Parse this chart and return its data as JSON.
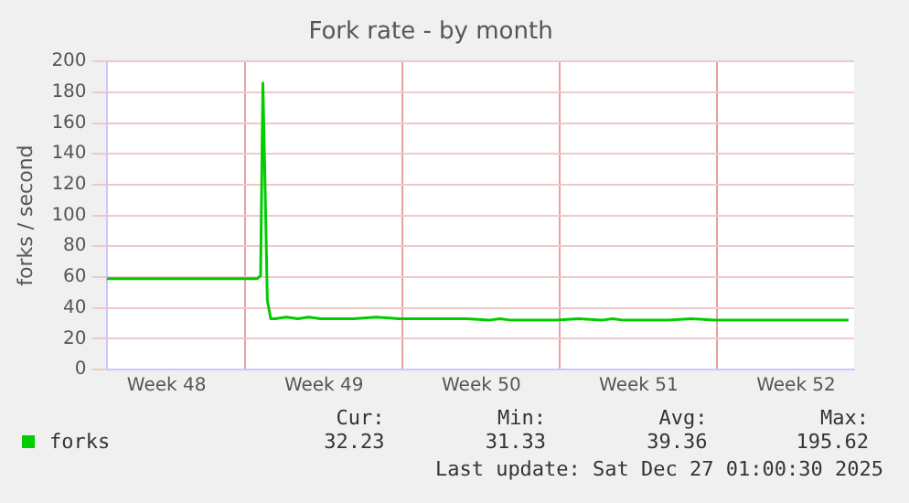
{
  "chart_data": {
    "type": "line",
    "title": "Fork rate - by month",
    "ylabel": "forks / second",
    "xlim": [
      "2025-11-24T20:00",
      "2025-12-28T02:00"
    ],
    "xticks": [
      {
        "value": "2025-11-27T12:00",
        "label": "Week 48"
      },
      {
        "value": "2025-12-01",
        "label": null
      },
      {
        "value": "2025-12-04T12:00",
        "label": "Week 49"
      },
      {
        "value": "2025-12-08",
        "label": null
      },
      {
        "value": "2025-12-11T12:00",
        "label": "Week 50"
      },
      {
        "value": "2025-12-15",
        "label": null
      },
      {
        "value": "2025-12-18T12:00",
        "label": "Week 51"
      },
      {
        "value": "2025-12-22",
        "label": null
      },
      {
        "value": "2025-12-25T12:00",
        "label": "Week 52"
      }
    ],
    "ylim": [
      0,
      200
    ],
    "yticks": [
      0,
      20,
      40,
      60,
      80,
      100,
      120,
      140,
      160,
      180,
      200
    ],
    "grid": true,
    "legend": "bottom",
    "marker": "none",
    "line_style": "solid",
    "series": [
      {
        "name": "forks",
        "color": "#00cc00",
        "x": [
          "2025-11-24T20:00",
          "2025-11-26T20:00",
          "2025-11-28T20:00",
          "2025-11-30T20:00",
          "2025-12-01T12:50",
          "2025-12-01T16:25",
          "2025-12-01T18:50",
          "2025-12-01T21:10",
          "2025-12-01T23:35",
          "2025-12-02T03:10",
          "2025-12-02T08:00",
          "2025-12-02T20:00",
          "2025-12-03T08:00",
          "2025-12-03T20:00",
          "2025-12-04T08:00",
          "2025-12-04T20:00",
          "2025-12-05T20:00",
          "2025-12-06T20:00",
          "2025-12-07T20:00",
          "2025-12-08T20:00",
          "2025-12-09T20:00",
          "2025-12-10T20:00",
          "2025-12-11T20:00",
          "2025-12-12T08:00",
          "2025-12-12T20:00",
          "2025-12-13T20:00",
          "2025-12-14T20:00",
          "2025-12-15T20:00",
          "2025-12-16T20:00",
          "2025-12-17T08:00",
          "2025-12-17T20:00",
          "2025-12-18T20:00",
          "2025-12-19T20:00",
          "2025-12-20T20:00",
          "2025-12-21T20:00",
          "2025-12-22T20:00",
          "2025-12-23T20:00",
          "2025-12-24T20:00",
          "2025-12-25T20:00",
          "2025-12-26T20:00",
          "2025-12-27T20:00"
        ],
        "values": [
          59,
          59,
          59,
          59,
          59,
          61,
          186,
          120,
          45,
          33,
          33,
          34,
          33,
          34,
          33,
          33,
          33,
          34,
          33,
          33,
          33,
          33,
          32,
          33,
          32,
          32,
          32,
          33,
          32,
          33,
          32,
          32,
          32,
          33,
          32,
          32,
          32,
          32,
          32,
          32,
          32
        ]
      }
    ],
    "annotations": [
      "Cur:",
      "32.23",
      "Min:",
      "31.33",
      "Avg:",
      "39.36",
      "Max:",
      "195.62",
      "Last update: Sat Dec 27 01:00:30 2025"
    ]
  }
}
